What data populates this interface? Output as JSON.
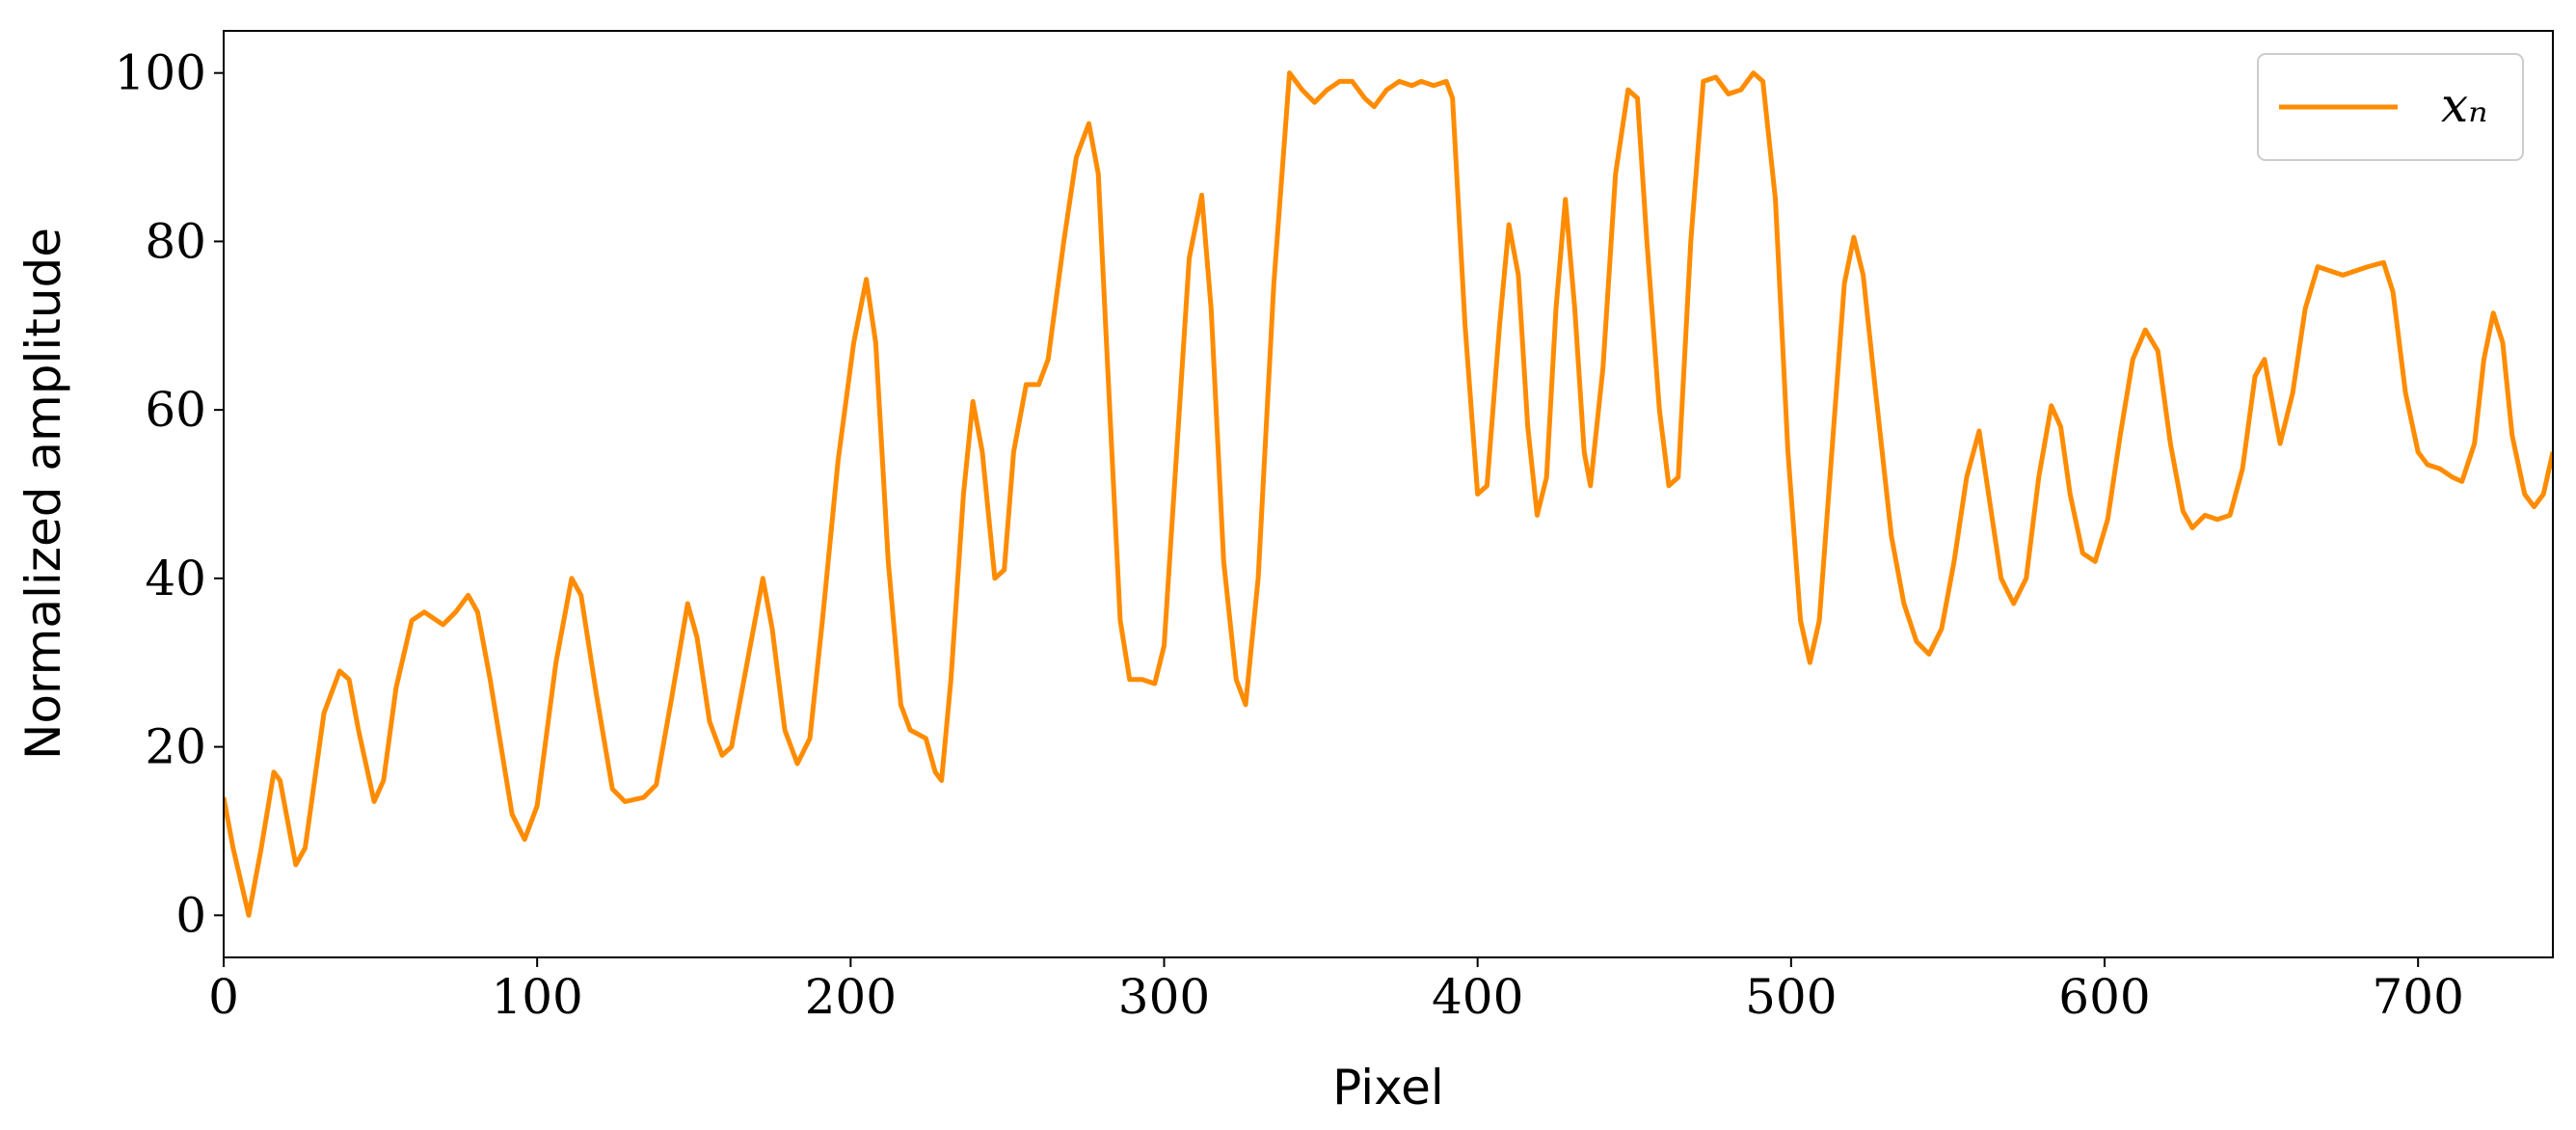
{
  "chart_data": {
    "type": "line",
    "xlabel": "Pixel",
    "ylabel": "Normalized amplitude",
    "xlim": [
      0,
      743
    ],
    "ylim": [
      -5,
      105
    ],
    "xticks": [
      0,
      100,
      200,
      300,
      400,
      500,
      600,
      700
    ],
    "yticks": [
      0,
      20,
      40,
      60,
      80,
      100
    ],
    "legend": "upper right",
    "x": [
      0,
      3,
      8,
      12,
      16,
      18,
      23,
      26,
      32,
      37,
      40,
      43,
      48,
      51,
      55,
      60,
      64,
      70,
      74,
      78,
      81,
      85,
      92,
      96,
      100,
      106,
      111,
      114,
      119,
      124,
      128,
      134,
      138,
      143,
      148,
      151,
      155,
      159,
      162,
      167,
      172,
      175,
      179,
      183,
      187,
      191,
      196,
      201,
      205,
      208,
      212,
      216,
      219,
      224,
      227,
      229,
      232,
      236,
      239,
      242,
      246,
      249,
      252,
      256,
      260,
      263,
      268,
      272,
      276,
      279,
      282,
      286,
      289,
      293,
      297,
      300,
      304,
      308,
      312,
      315,
      319,
      323,
      326,
      330,
      335,
      340,
      344,
      348,
      352,
      356,
      360,
      364,
      367,
      371,
      375,
      379,
      382,
      386,
      390,
      392,
      396,
      400,
      403,
      407,
      410,
      413,
      416,
      419,
      422,
      425,
      428,
      431,
      434,
      436,
      440,
      444,
      448,
      451,
      454,
      458,
      461,
      464,
      468,
      472,
      476,
      480,
      484,
      488,
      491,
      495,
      499,
      503,
      506,
      509,
      513,
      517,
      520,
      523,
      527,
      532,
      536,
      540,
      544,
      548,
      552,
      556,
      560,
      563,
      567,
      571,
      575,
      579,
      583,
      586,
      589,
      593,
      597,
      601,
      605,
      609,
      613,
      617,
      621,
      625,
      628,
      632,
      636,
      640,
      644,
      648,
      651,
      654,
      656,
      660,
      664,
      668,
      672,
      676,
      680,
      684,
      689,
      692,
      696,
      700,
      703,
      707,
      711,
      714,
      718,
      721,
      724,
      727,
      730,
      734,
      737,
      740,
      743
    ],
    "series": [
      {
        "name": "xₙ",
        "color": "#ff8c00",
        "values": [
          14,
          8,
          0,
          8,
          17,
          16,
          6,
          8,
          24,
          29,
          28,
          22,
          13.5,
          16,
          27,
          35,
          36,
          34.5,
          36,
          38,
          36,
          28,
          12,
          9,
          13,
          30,
          40,
          38,
          26,
          15,
          13.5,
          14,
          15.5,
          26,
          37,
          33,
          23,
          19,
          20,
          30,
          40,
          34,
          22,
          18,
          21,
          35,
          54,
          68,
          75.5,
          68,
          42,
          25,
          22,
          21,
          17,
          16,
          28,
          50,
          61,
          55,
          40,
          41,
          55,
          63,
          63,
          66,
          80,
          90,
          94,
          88,
          65,
          35,
          28,
          28,
          27.5,
          32,
          55,
          78,
          85.5,
          72,
          42,
          28,
          25,
          40,
          75,
          100,
          98,
          96.5,
          98,
          99,
          99,
          97,
          96,
          98,
          99,
          98.5,
          99,
          98.5,
          99,
          97,
          70,
          50,
          51,
          70,
          82,
          76,
          58,
          47.5,
          52,
          72,
          85,
          72,
          55,
          51,
          65,
          88,
          98,
          97,
          80,
          60,
          51,
          52,
          80,
          99,
          99.5,
          97.5,
          98,
          100,
          99,
          85,
          55,
          35,
          30,
          35,
          55,
          75,
          80.5,
          76,
          62,
          45,
          37,
          32.5,
          31,
          34,
          42,
          52,
          57.5,
          50,
          40,
          37,
          40,
          52,
          60.5,
          58,
          50,
          43,
          42,
          47,
          57,
          66,
          69.5,
          67,
          56,
          48,
          46,
          47.5,
          47,
          47.5,
          53,
          64,
          66,
          60,
          56,
          62,
          72,
          77,
          76.5,
          76,
          76.5,
          77,
          77.5,
          74,
          62,
          55,
          53.5,
          53,
          52,
          51.5,
          56,
          66,
          71.5,
          68,
          57,
          50,
          48.5,
          50,
          55
        ]
      }
    ]
  }
}
